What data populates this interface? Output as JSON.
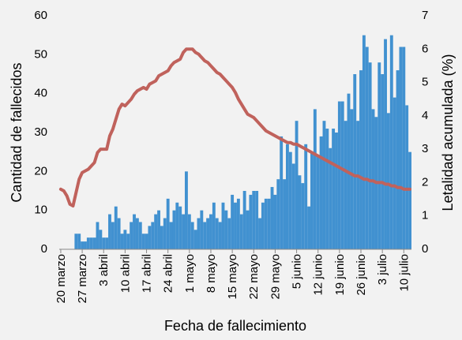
{
  "chart_data": {
    "type": "bar",
    "xlabel": "Fecha de fallecimiento",
    "ylabel": "Cantidad de fallecidos",
    "y2label": "Letalidad acumulada (%)",
    "categories": [
      "20 marzo",
      null,
      null,
      null,
      null,
      null,
      null,
      "27 marzo",
      null,
      null,
      null,
      null,
      null,
      null,
      "3 abril",
      null,
      null,
      null,
      null,
      null,
      null,
      "10 abril",
      null,
      null,
      null,
      null,
      null,
      null,
      "17 abril",
      null,
      null,
      null,
      null,
      null,
      null,
      "24 abril",
      null,
      null,
      null,
      null,
      null,
      null,
      "1 mayo",
      null,
      null,
      null,
      null,
      null,
      null,
      "8 mayo",
      null,
      null,
      null,
      null,
      null,
      null,
      "15 mayo",
      null,
      null,
      null,
      null,
      null,
      null,
      "22 mayo",
      null,
      null,
      null,
      null,
      null,
      null,
      "29 mayo",
      null,
      null,
      null,
      null,
      null,
      null,
      "5 junio",
      null,
      null,
      null,
      null,
      null,
      null,
      "12 junio",
      null,
      null,
      null,
      null,
      null,
      null,
      "19 junio",
      null,
      null,
      null,
      null,
      null,
      null,
      "26 junio",
      null,
      null,
      null,
      null,
      null,
      null,
      "3 julio",
      null,
      null,
      null,
      null,
      null,
      null,
      "10 julio",
      null,
      null
    ],
    "series": [
      {
        "type": "bar",
        "color": "#4191d0",
        "values": [
          0,
          0,
          0,
          0,
          0,
          4,
          4,
          2,
          2,
          3,
          3,
          3,
          7,
          5,
          3,
          3,
          9,
          7,
          11,
          8,
          4,
          5,
          4,
          7,
          9,
          8,
          7,
          4,
          4,
          6,
          7,
          9,
          10,
          6,
          8,
          13,
          7,
          10,
          12,
          11,
          9,
          20,
          9,
          7,
          5,
          8,
          10,
          7,
          8,
          9,
          12,
          8,
          7,
          12,
          10,
          8,
          14,
          12,
          13,
          9,
          15,
          10,
          14,
          15,
          15,
          8,
          12,
          13,
          13,
          16,
          14,
          18,
          29,
          18,
          27,
          25,
          22,
          33,
          19,
          17,
          27,
          11,
          25,
          36,
          24,
          29,
          33,
          31,
          26,
          31,
          30,
          38,
          38,
          33,
          40,
          36,
          45,
          33,
          46,
          55,
          52,
          48,
          36,
          34,
          48,
          45,
          54,
          35,
          55,
          39,
          46,
          52,
          52,
          37,
          25
        ]
      },
      {
        "type": "line",
        "axis": "y2",
        "color": "#c0625c",
        "values": [
          1.8,
          1.75,
          1.6,
          1.35,
          1.3,
          1.7,
          2.1,
          2.3,
          2.35,
          2.4,
          2.5,
          2.6,
          2.9,
          3.0,
          3.0,
          3.0,
          3.4,
          3.6,
          3.9,
          4.2,
          4.35,
          4.3,
          4.4,
          4.5,
          4.65,
          4.75,
          4.8,
          4.85,
          4.8,
          4.95,
          5.0,
          5.05,
          5.2,
          5.25,
          5.3,
          5.35,
          5.5,
          5.6,
          5.65,
          5.7,
          5.9,
          6.0,
          6.0,
          6.0,
          5.9,
          5.85,
          5.75,
          5.65,
          5.6,
          5.5,
          5.4,
          5.3,
          5.25,
          5.15,
          5.05,
          4.95,
          4.85,
          4.7,
          4.5,
          4.35,
          4.2,
          4.05,
          4.0,
          3.95,
          3.85,
          3.75,
          3.65,
          3.55,
          3.5,
          3.45,
          3.4,
          3.35,
          3.3,
          3.25,
          3.2,
          3.2,
          3.15,
          3.15,
          3.1,
          3.05,
          3.0,
          2.95,
          2.9,
          2.85,
          2.8,
          2.75,
          2.7,
          2.65,
          2.6,
          2.55,
          2.5,
          2.45,
          2.4,
          2.35,
          2.3,
          2.25,
          2.2,
          2.2,
          2.15,
          2.1,
          2.1,
          2.05,
          2.05,
          2.0,
          2.0,
          2.0,
          1.95,
          1.95,
          1.9,
          1.9,
          1.85,
          1.85,
          1.8,
          1.8,
          1.8
        ]
      }
    ],
    "ylim": [
      0,
      60
    ],
    "yticks": [
      0,
      10,
      20,
      30,
      40,
      50,
      60
    ],
    "y2lim": [
      0,
      7
    ],
    "y2ticks": [
      0,
      1,
      2,
      3,
      4,
      5,
      6,
      7
    ]
  }
}
